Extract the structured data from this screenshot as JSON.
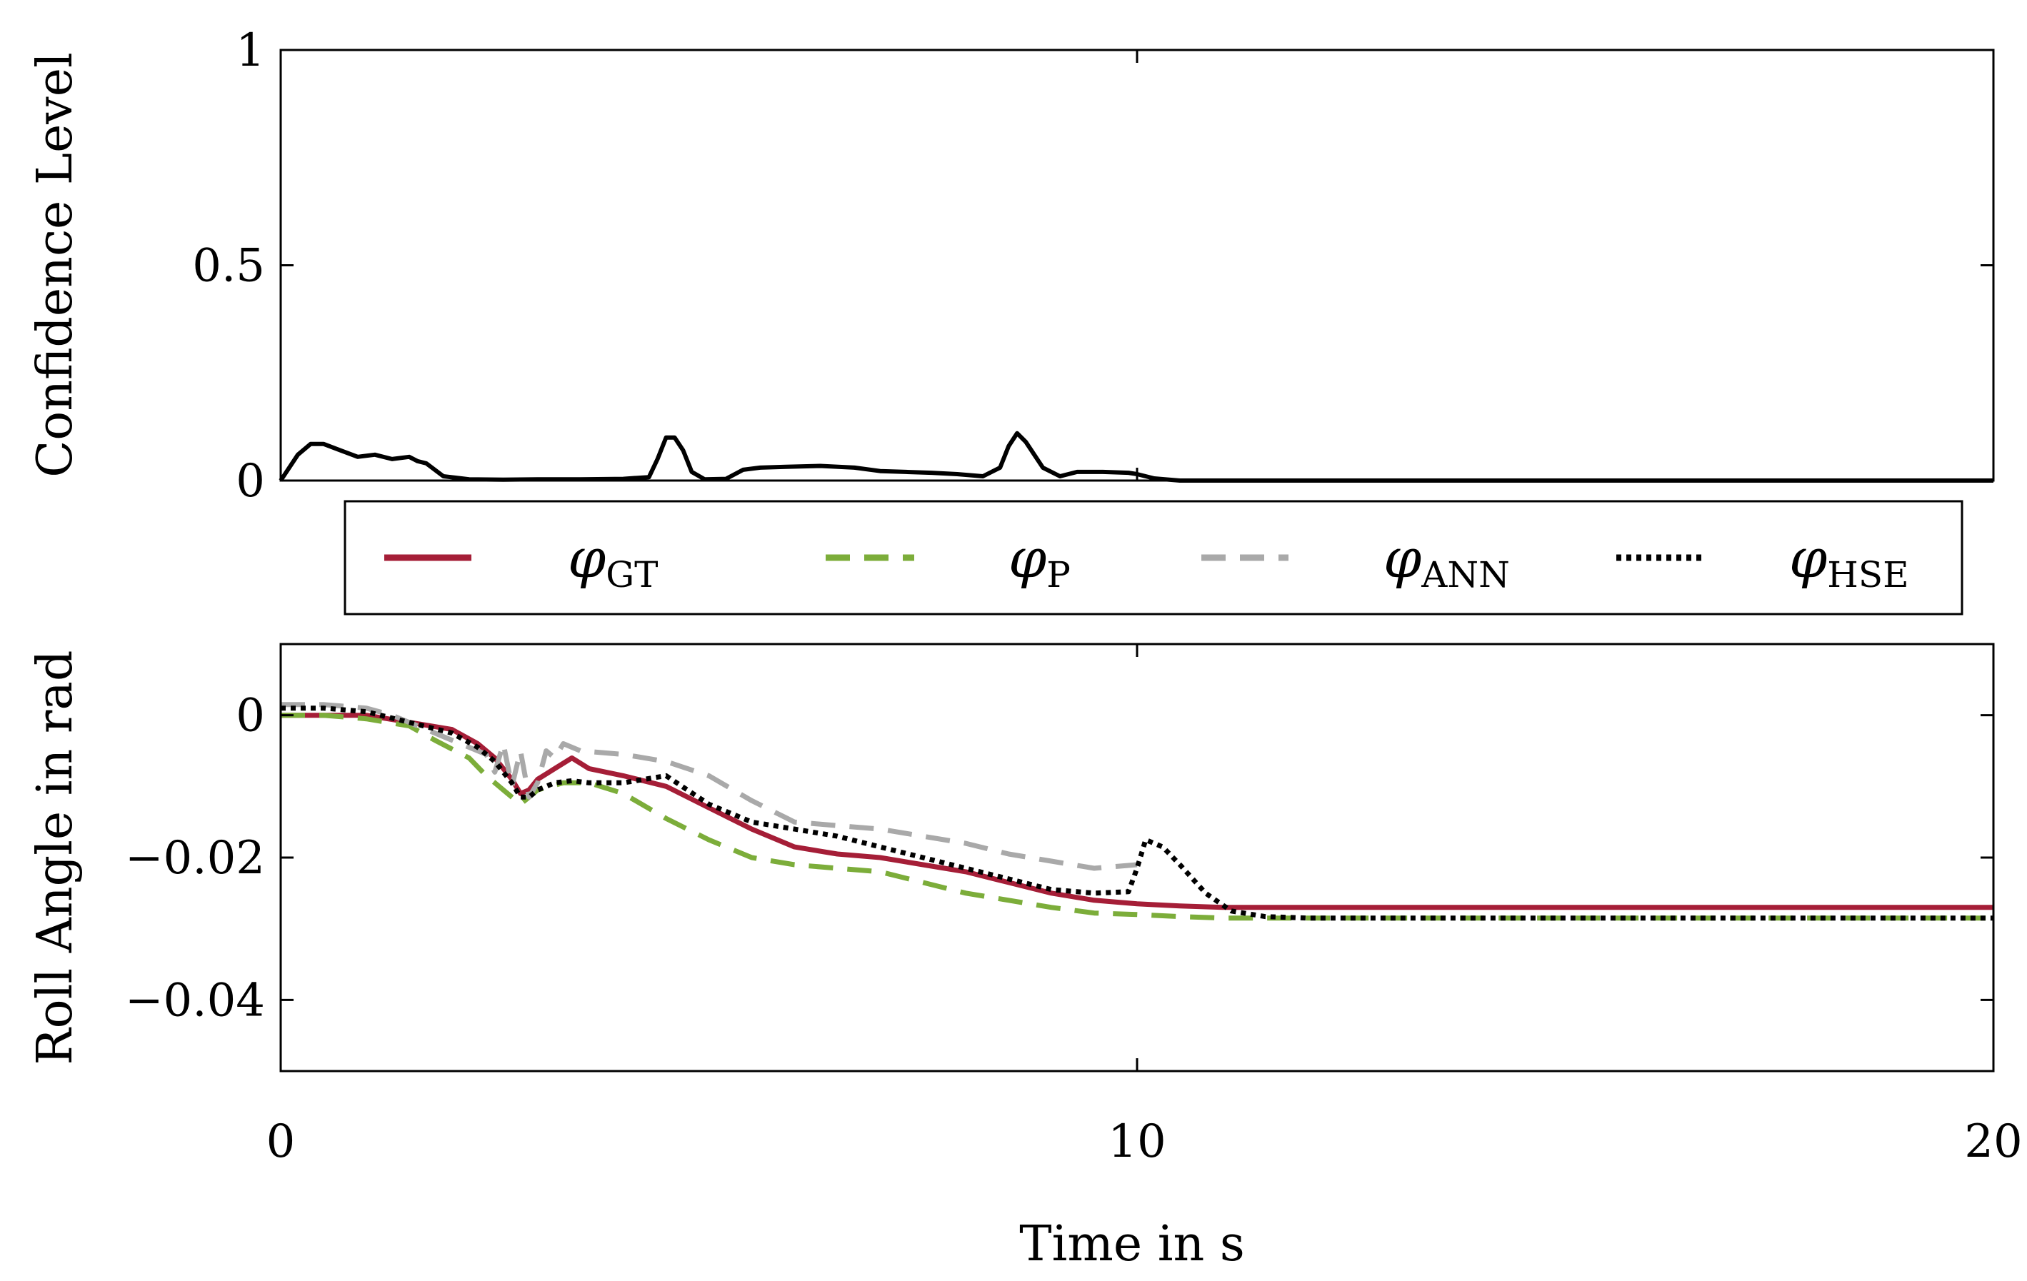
{
  "figure": {
    "xlabel": "Time in s",
    "xticks": [
      "0",
      "10",
      "20"
    ]
  },
  "colors": {
    "gt": "#a51e37",
    "p": "#7cad3a",
    "ann": "#a9a9a9",
    "hse": "#000000",
    "confidence": "#000000"
  },
  "legend": {
    "items": [
      {
        "symbol": "φ",
        "sub": "GT",
        "series": "gt"
      },
      {
        "symbol": "φ",
        "sub": "P",
        "series": "p"
      },
      {
        "symbol": "φ",
        "sub": "ANN",
        "series": "ann"
      },
      {
        "symbol": "φ",
        "sub": "HSE",
        "series": "hse"
      }
    ]
  },
  "chart_data": [
    {
      "type": "line",
      "name": "confidence",
      "title": "",
      "xlabel": "Time in s",
      "ylabel": "Confidence Level",
      "xlim": [
        0,
        20
      ],
      "ylim": [
        0,
        1
      ],
      "yticks": [
        {
          "value": 0,
          "label": "0"
        },
        {
          "value": 0.5,
          "label": "0.5"
        },
        {
          "value": 1,
          "label": "1"
        }
      ],
      "series": [
        {
          "name": "Confidence",
          "x": [
            0,
            0.2,
            0.35,
            0.5,
            0.7,
            0.9,
            1.1,
            1.3,
            1.5,
            1.6,
            1.7,
            1.9,
            2.2,
            2.6,
            3.0,
            3.5,
            4.0,
            4.3,
            4.4,
            4.5,
            4.55,
            4.6,
            4.7,
            4.8,
            4.95,
            5.2,
            5.4,
            5.6,
            5.9,
            6.3,
            6.7,
            7.0,
            7.3,
            7.6,
            7.9,
            8.2,
            8.4,
            8.5,
            8.6,
            8.7,
            8.8,
            8.9,
            9.1,
            9.3,
            9.6,
            9.9,
            10.0,
            10.2,
            10.5,
            12.0,
            14.0,
            16.0,
            18.0,
            20.0
          ],
          "y": [
            0,
            0.06,
            0.085,
            0.085,
            0.07,
            0.055,
            0.06,
            0.05,
            0.055,
            0.045,
            0.04,
            0.01,
            0.003,
            0.002,
            0.003,
            0.003,
            0.004,
            0.008,
            0.05,
            0.1,
            0.1,
            0.1,
            0.07,
            0.02,
            0.003,
            0.004,
            0.025,
            0.03,
            0.032,
            0.034,
            0.03,
            0.022,
            0.02,
            0.018,
            0.015,
            0.01,
            0.03,
            0.08,
            0.11,
            0.09,
            0.06,
            0.03,
            0.01,
            0.02,
            0.02,
            0.018,
            0.015,
            0.005,
            0,
            0,
            0,
            0,
            0,
            0
          ]
        }
      ]
    },
    {
      "type": "line",
      "name": "roll-angle",
      "title": "",
      "xlabel": "Time in s",
      "ylabel": "Roll Angle in rad",
      "xlim": [
        0,
        20
      ],
      "ylim": [
        -0.05,
        0.01
      ],
      "yticks": [
        {
          "value": -0.04,
          "label": "−0.04"
        },
        {
          "value": -0.02,
          "label": "−0.02"
        },
        {
          "value": 0,
          "label": "0"
        }
      ],
      "series": [
        {
          "name": "φGT",
          "key": "gt",
          "dash": "solid",
          "x": [
            0,
            0.5,
            1.0,
            1.5,
            2.0,
            2.3,
            2.5,
            2.7,
            2.8,
            2.9,
            3.0,
            3.2,
            3.4,
            3.6,
            4.0,
            4.5,
            5.0,
            5.5,
            6.0,
            6.5,
            7.0,
            7.5,
            8.0,
            8.5,
            9.0,
            9.5,
            10.0,
            10.5,
            11.0,
            11.5,
            12.0,
            13.0,
            15.0,
            17.0,
            20.0
          ],
          "y": [
            0,
            0,
            0,
            -0.001,
            -0.002,
            -0.004,
            -0.006,
            -0.009,
            -0.011,
            -0.0105,
            -0.009,
            -0.0075,
            -0.006,
            -0.0075,
            -0.0085,
            -0.01,
            -0.013,
            -0.016,
            -0.0185,
            -0.0195,
            -0.02,
            -0.021,
            -0.022,
            -0.0235,
            -0.025,
            -0.026,
            -0.0265,
            -0.0268,
            -0.027,
            -0.027,
            -0.027,
            -0.027,
            -0.027,
            -0.027,
            -0.027
          ]
        },
        {
          "name": "φP",
          "key": "p",
          "dash": "dashed",
          "x": [
            0,
            0.5,
            1.0,
            1.5,
            1.8,
            2.2,
            2.4,
            2.5,
            2.6,
            2.7,
            2.8,
            2.9,
            3.0,
            3.3,
            3.6,
            4.0,
            4.5,
            5.0,
            5.5,
            6.0,
            6.5,
            7.0,
            7.5,
            8.0,
            8.5,
            9.0,
            9.5,
            10.0,
            10.5,
            11.0,
            11.5,
            12.0,
            13.0,
            15.0,
            17.0,
            20.0
          ],
          "y": [
            0,
            0,
            -0.0005,
            -0.0015,
            -0.0035,
            -0.006,
            -0.0085,
            -0.0095,
            -0.0105,
            -0.0115,
            -0.0125,
            -0.0115,
            -0.0105,
            -0.0095,
            -0.0095,
            -0.011,
            -0.0145,
            -0.0175,
            -0.02,
            -0.021,
            -0.0215,
            -0.022,
            -0.0235,
            -0.025,
            -0.026,
            -0.027,
            -0.0278,
            -0.028,
            -0.0283,
            -0.0285,
            -0.0285,
            -0.0285,
            -0.0285,
            -0.0285,
            -0.0285,
            -0.0285
          ]
        },
        {
          "name": "φANN",
          "key": "ann",
          "dash": "dashed",
          "x": [
            0,
            0.5,
            1.0,
            1.3,
            1.6,
            1.9,
            2.2,
            2.4,
            2.5,
            2.6,
            2.7,
            2.8,
            2.9,
            3.0,
            3.1,
            3.2,
            3.3,
            3.5,
            4.0,
            4.5,
            5.0,
            5.5,
            6.0,
            6.5,
            7.0,
            7.5,
            8.0,
            8.5,
            9.0,
            9.5,
            10.0
          ],
          "y": [
            0.0015,
            0.0015,
            0.001,
            0,
            -0.0015,
            -0.003,
            -0.0045,
            -0.0055,
            -0.008,
            -0.004,
            -0.01,
            -0.005,
            -0.0115,
            -0.0095,
            -0.005,
            -0.006,
            -0.004,
            -0.005,
            -0.0055,
            -0.0065,
            -0.0085,
            -0.012,
            -0.015,
            -0.0155,
            -0.016,
            -0.017,
            -0.018,
            -0.0195,
            -0.0205,
            -0.0215,
            -0.021
          ]
        },
        {
          "name": "φHSE",
          "key": "hse",
          "dash": "dotted",
          "x": [
            0,
            0.5,
            1.0,
            1.5,
            2.0,
            2.3,
            2.5,
            2.7,
            2.8,
            2.9,
            3.0,
            3.2,
            3.4,
            3.6,
            4.0,
            4.5,
            5.0,
            5.5,
            6.0,
            6.5,
            7.0,
            7.5,
            8.0,
            8.5,
            9.0,
            9.5,
            9.9,
            10.0,
            10.1,
            10.3,
            10.5,
            10.8,
            11.1,
            11.5,
            12.0,
            13.0,
            15.0,
            17.0,
            20.0
          ],
          "y": [
            0.001,
            0.001,
            0.0005,
            -0.001,
            -0.0025,
            -0.0045,
            -0.0065,
            -0.0095,
            -0.0115,
            -0.0115,
            -0.0105,
            -0.0095,
            -0.0092,
            -0.0095,
            -0.0095,
            -0.0085,
            -0.0125,
            -0.015,
            -0.016,
            -0.017,
            -0.0185,
            -0.02,
            -0.0215,
            -0.023,
            -0.0245,
            -0.025,
            -0.0248,
            -0.0215,
            -0.0175,
            -0.0185,
            -0.021,
            -0.025,
            -0.0275,
            -0.0283,
            -0.0285,
            -0.0285,
            -0.0285,
            -0.0285,
            -0.0285
          ]
        }
      ]
    }
  ]
}
